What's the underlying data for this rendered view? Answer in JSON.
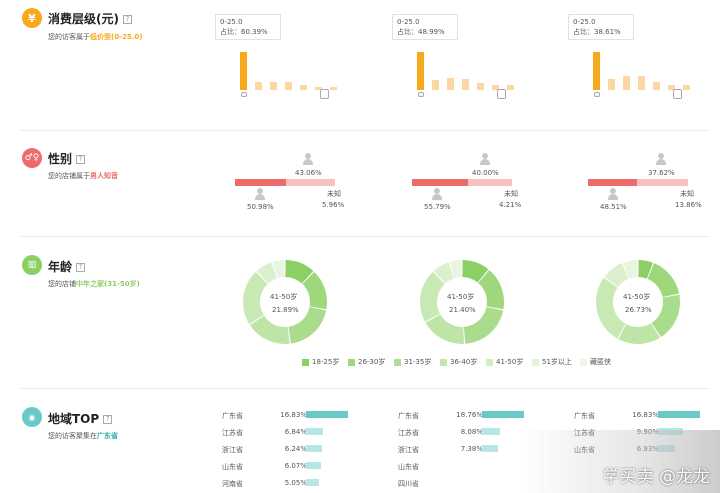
{
  "colors": {
    "orange": "#f7a81b",
    "orange_light": "#fcd7a4",
    "pink": "#ec6b6b",
    "pink_light": "#f7c1c1",
    "green": "#8ccf65",
    "teal": "#6cc7c7",
    "teal_light": "#b8e6e6",
    "gray": "#999999"
  },
  "consumption": {
    "title": "消费层级(元)",
    "help": "?",
    "sub_prefix": "您的访客属于",
    "sub_highlight": "低价型(0-25.0)",
    "icon": "yen-icon",
    "icon_glyph": "¥",
    "columns": [
      {
        "tip_range": "0-25.0",
        "tip_share": "占比：60.39%",
        "bars": [
          100,
          22,
          22,
          20,
          12,
          9,
          9
        ]
      },
      {
        "tip_range": "0-25.0",
        "tip_share": "占比：48.99%",
        "bars": [
          100,
          25,
          32,
          28,
          18,
          12,
          12
        ]
      },
      {
        "tip_range": "0-25.0",
        "tip_share": "占比：38.61%",
        "bars": [
          100,
          30,
          38,
          38,
          20,
          12,
          12
        ]
      }
    ]
  },
  "gender": {
    "title": "性别",
    "help": "?",
    "sub_prefix": "您的店铺属于",
    "sub_highlight": "男人知音",
    "icon": "gender-icon",
    "icon_glyph": "👥",
    "unknown_label": "未知",
    "columns": [
      {
        "female": "43.06%",
        "male": "50.98%",
        "unknown": "5.96%",
        "male_frac": 0.5098
      },
      {
        "female": "40.00%",
        "male": "55.79%",
        "unknown": "4.21%",
        "male_frac": 0.5579
      },
      {
        "female": "37.62%",
        "male": "48.51%",
        "unknown": "13.86%",
        "male_frac": 0.4851
      }
    ]
  },
  "age": {
    "title": "年龄",
    "help": "?",
    "sub_prefix": "您的店铺",
    "sub_highlight": "中年之家(31-50岁)",
    "icon": "age-chart-icon",
    "icon_glyph": "▮",
    "columns": [
      {
        "label": "41-50岁",
        "value": "21.89%",
        "slices": [
          0.12,
          0.16,
          0.2,
          0.18,
          0.22,
          0.07,
          0.05
        ]
      },
      {
        "label": "41-50岁",
        "value": "21.40%",
        "slices": [
          0.11,
          0.17,
          0.21,
          0.18,
          0.21,
          0.07,
          0.05
        ]
      },
      {
        "label": "41-50岁",
        "value": "26.73%",
        "slices": [
          0.06,
          0.16,
          0.19,
          0.17,
          0.27,
          0.09,
          0.06
        ]
      }
    ],
    "legend": [
      {
        "label": "18-25岁",
        "color": "#8ccf65"
      },
      {
        "label": "26-30岁",
        "color": "#9ed77c"
      },
      {
        "label": "31-35岁",
        "color": "#afdf92"
      },
      {
        "label": "36-40岁",
        "color": "#c2e7ab"
      },
      {
        "label": "41-50岁",
        "color": "#d4eec4"
      },
      {
        "label": "51岁以上",
        "color": "#e4f4da"
      },
      {
        "label": "藏匿侠",
        "color": "#eef8e8"
      }
    ]
  },
  "region": {
    "title": "地域TOP",
    "help": "?",
    "sub_prefix": "您的访客聚集在",
    "sub_highlight": "广东省",
    "icon": "location-pin-icon",
    "icon_glyph": "●",
    "columns": [
      {
        "rows": [
          {
            "name": "广东省",
            "value": "16.83%",
            "frac": 1.0
          },
          {
            "name": "江苏省",
            "value": "6.84%",
            "frac": 0.41
          },
          {
            "name": "浙江省",
            "value": "6.24%",
            "frac": 0.37
          },
          {
            "name": "山东省",
            "value": "6.07%",
            "frac": 0.36
          },
          {
            "name": "河南省",
            "value": "5.05%",
            "frac": 0.3
          }
        ]
      },
      {
        "rows": [
          {
            "name": "广东省",
            "value": "18.76%",
            "frac": 1.0
          },
          {
            "name": "江苏省",
            "value": "8.08%",
            "frac": 0.43
          },
          {
            "name": "浙江省",
            "value": "7.38%",
            "frac": 0.39
          },
          {
            "name": "山东省",
            "value": "",
            "frac": 0
          },
          {
            "name": "四川省",
            "value": "",
            "frac": 0
          }
        ]
      },
      {
        "rows": [
          {
            "name": "广东省",
            "value": "16.83%",
            "frac": 1.0
          },
          {
            "name": "江苏省",
            "value": "9.90%",
            "frac": 0.59
          },
          {
            "name": "山东省",
            "value": "6.93%",
            "frac": 0.41
          }
        ]
      }
    ]
  },
  "watermark": "学买卖 @龙龙"
}
